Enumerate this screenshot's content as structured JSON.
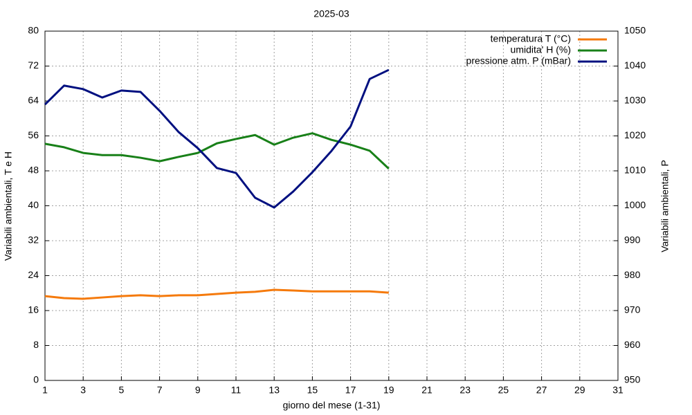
{
  "chart_data": {
    "type": "line",
    "title": "2025-03",
    "x_label": "giorno del mese (1-31)",
    "y_label": "Variabili ambientali, T e H",
    "y2_label": "Variabili ambientali, P",
    "x": [
      1,
      2,
      3,
      4,
      5,
      6,
      7,
      8,
      9,
      10,
      11,
      12,
      13,
      14,
      15,
      16,
      17,
      18,
      19
    ],
    "xlim": [
      1,
      31
    ],
    "xticks": [
      1,
      3,
      5,
      7,
      9,
      11,
      13,
      15,
      17,
      19,
      21,
      23,
      25,
      27,
      29,
      31
    ],
    "ylim": [
      0,
      80
    ],
    "yticks": [
      0,
      8,
      16,
      24,
      32,
      40,
      48,
      56,
      64,
      72,
      80
    ],
    "y2lim": [
      950,
      1050
    ],
    "y2ticks": [
      950,
      960,
      970,
      980,
      990,
      1000,
      1010,
      1020,
      1030,
      1040,
      1050
    ],
    "grid": true,
    "legend": "top-right",
    "series": [
      {
        "name": "temperatura T (°C)",
        "color": "#f57a0c",
        "values": [
          19.3,
          18.85,
          18.7,
          19.0,
          19.3,
          19.5,
          19.3,
          19.5,
          19.5,
          19.8,
          20.1,
          20.3,
          20.75,
          20.6,
          20.4,
          20.4,
          20.4,
          20.4,
          20.1
        ]
      },
      {
        "name": "umidita' H (%)",
        "color": "#188018",
        "values": [
          54.2,
          53.4,
          52.1,
          51.6,
          51.6,
          51.0,
          50.2,
          51.2,
          52.1,
          54.3,
          55.3,
          56.2,
          54.0,
          55.6,
          56.6,
          55.1,
          54.0,
          52.6,
          48.5
        ]
      },
      {
        "name": "pressione atm. P (mBar)",
        "color": "#001080",
        "axis": "y2",
        "values": [
          1029.0,
          1034.4,
          1033.4,
          1031.0,
          1033.0,
          1032.6,
          1027.2,
          1021.1,
          1016.5,
          1010.8,
          1009.4,
          1002.3,
          999.5,
          1004.1,
          1009.6,
          1015.7,
          1022.7,
          1036.3,
          1038.9
        ]
      }
    ]
  }
}
